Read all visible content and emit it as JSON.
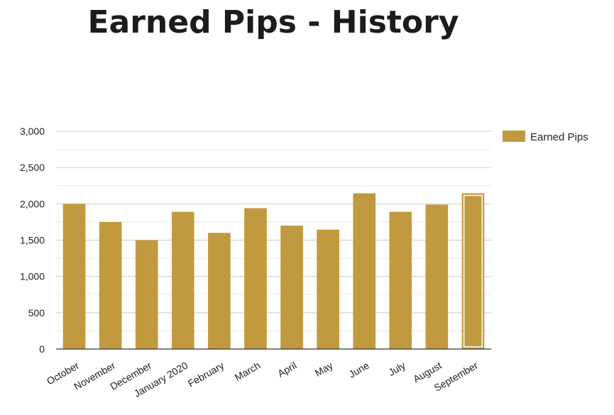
{
  "title": "Earned Pips - History",
  "chart_data": {
    "type": "bar",
    "categories": [
      "October",
      "November",
      "December",
      "January 2020",
      "February",
      "March",
      "April",
      "May",
      "June",
      "July",
      "August",
      "September"
    ],
    "series": [
      {
        "name": "Earned Pips",
        "values": [
          2000,
          1750,
          1500,
          1890,
          1600,
          1940,
          1700,
          1645,
          2145,
          1890,
          1990,
          2145
        ]
      }
    ],
    "highlighted_category": "September",
    "ylim": [
      0,
      3000
    ],
    "yticks": [
      0,
      500,
      1000,
      1500,
      2000,
      2500,
      3000
    ],
    "ytick_labels": [
      "0",
      "500",
      "1,000",
      "1,500",
      "2,000",
      "2,500",
      "3,000"
    ],
    "grid": true,
    "legend": "right",
    "bar_color": "#c19a40",
    "xlabel": "",
    "ylabel": ""
  }
}
